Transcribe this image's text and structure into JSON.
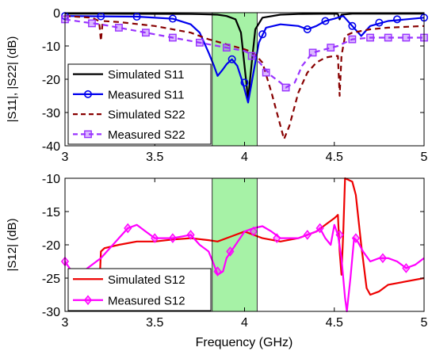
{
  "chart_data": [
    {
      "type": "line",
      "ylabel": "|S11|, |S22| (dB)",
      "xlim": [
        3,
        5
      ],
      "ylim": [
        -40,
        0
      ],
      "xticks": [
        "3",
        "3.5",
        "4",
        "4.5",
        "5"
      ],
      "yticks": [
        "0",
        "-10",
        "-20",
        "-30",
        "-40"
      ],
      "grid": false,
      "legend_position": "bottom-left",
      "highlight_band": {
        "x": [
          3.82,
          4.07
        ],
        "color": "#a6f2a6"
      },
      "series": [
        {
          "name": "Simulated S11",
          "style": "solid",
          "color": "#000000",
          "marker": "none",
          "points": [
            [
              3.0,
              -0.3
            ],
            [
              3.2,
              -0.3
            ],
            [
              3.5,
              -0.35
            ],
            [
              3.7,
              -0.4
            ],
            [
              3.8,
              -0.5
            ],
            [
              3.85,
              -0.6
            ],
            [
              3.9,
              -1.0
            ],
            [
              3.95,
              -2.0
            ],
            [
              3.98,
              -6.0
            ],
            [
              4.0,
              -16.0
            ],
            [
              4.02,
              -26.0
            ],
            [
              4.04,
              -15.0
            ],
            [
              4.06,
              -5.0
            ],
            [
              4.1,
              -1.5
            ],
            [
              4.2,
              -0.6
            ],
            [
              4.3,
              -0.4
            ],
            [
              4.5,
              -0.3
            ],
            [
              4.52,
              -0.4
            ],
            [
              4.53,
              -2.0
            ],
            [
              4.54,
              -0.6
            ],
            [
              4.6,
              -0.3
            ],
            [
              4.8,
              -0.3
            ],
            [
              5.0,
              -0.3
            ]
          ]
        },
        {
          "name": "Measured S11",
          "style": "solid",
          "color": "#0000ee",
          "marker": "circle",
          "points": [
            [
              3.0,
              -1.0
            ],
            [
              3.2,
              -1.1
            ],
            [
              3.4,
              -1.2
            ],
            [
              3.6,
              -1.8
            ],
            [
              3.7,
              -3.5
            ],
            [
              3.75,
              -6.0
            ],
            [
              3.8,
              -12.0
            ],
            [
              3.83,
              -16.0
            ],
            [
              3.85,
              -19.0
            ],
            [
              3.88,
              -17.0
            ],
            [
              3.9,
              -15.5
            ],
            [
              3.93,
              -14.0
            ],
            [
              3.96,
              -16.0
            ],
            [
              3.99,
              -21.0
            ],
            [
              4.02,
              -27.0
            ],
            [
              4.05,
              -18.0
            ],
            [
              4.08,
              -9.0
            ],
            [
              4.12,
              -4.5
            ],
            [
              4.2,
              -3.5
            ],
            [
              4.3,
              -4.0
            ],
            [
              4.35,
              -5.0
            ],
            [
              4.4,
              -4.0
            ],
            [
              4.45,
              -2.5
            ],
            [
              4.5,
              -1.8
            ],
            [
              4.55,
              -1.0
            ],
            [
              4.6,
              -4.0
            ],
            [
              4.65,
              -7.0
            ],
            [
              4.7,
              -4.0
            ],
            [
              4.8,
              -2.5
            ],
            [
              5.0,
              -1.5
            ]
          ],
          "marker_points": [
            [
              3.0,
              -1.0
            ],
            [
              3.2,
              -1.1
            ],
            [
              3.4,
              -1.2
            ],
            [
              3.6,
              -1.8
            ],
            [
              3.93,
              -14.0
            ],
            [
              4.0,
              -21.0
            ],
            [
              4.1,
              -6.5
            ],
            [
              4.35,
              -5.0
            ],
            [
              4.45,
              -2.5
            ],
            [
              4.6,
              -4.0
            ],
            [
              4.75,
              -3.0
            ],
            [
              4.85,
              -2.0
            ],
            [
              5.0,
              -1.5
            ]
          ]
        },
        {
          "name": "Simulated S22",
          "style": "dashed",
          "color": "#880000",
          "marker": "none",
          "points": [
            [
              3.0,
              -1.0
            ],
            [
              3.15,
              -1.5
            ],
            [
              3.19,
              -2.5
            ],
            [
              3.2,
              -8.5
            ],
            [
              3.21,
              -2.5
            ],
            [
              3.3,
              -2.8
            ],
            [
              3.5,
              -4.0
            ],
            [
              3.7,
              -6.0
            ],
            [
              3.8,
              -8.0
            ],
            [
              3.9,
              -9.5
            ],
            [
              4.0,
              -11.0
            ],
            [
              4.05,
              -12.0
            ],
            [
              4.1,
              -15.0
            ],
            [
              4.15,
              -24.0
            ],
            [
              4.2,
              -34.0
            ],
            [
              4.22,
              -38.0
            ],
            [
              4.25,
              -34.0
            ],
            [
              4.3,
              -24.0
            ],
            [
              4.35,
              -18.0
            ],
            [
              4.4,
              -15.0
            ],
            [
              4.45,
              -13.5
            ],
            [
              4.5,
              -13.0
            ],
            [
              4.52,
              -13.0
            ],
            [
              4.53,
              -25.0
            ],
            [
              4.54,
              -13.0
            ],
            [
              4.56,
              -7.0
            ],
            [
              4.6,
              -6.0
            ],
            [
              4.7,
              -5.0
            ],
            [
              4.8,
              -4.5
            ],
            [
              5.0,
              -4.0
            ]
          ]
        },
        {
          "name": "Measured S22",
          "style": "dashed",
          "color": "#9933ff",
          "marker": "square",
          "points": [
            [
              3.0,
              -2.0
            ],
            [
              3.1,
              -2.8
            ],
            [
              3.2,
              -3.5
            ],
            [
              3.3,
              -4.5
            ],
            [
              3.4,
              -5.5
            ],
            [
              3.5,
              -6.5
            ],
            [
              3.6,
              -7.5
            ],
            [
              3.7,
              -8.5
            ],
            [
              3.8,
              -9.5
            ],
            [
              3.9,
              -10.5
            ],
            [
              4.0,
              -11.5
            ],
            [
              4.05,
              -13.0
            ],
            [
              4.1,
              -16.0
            ],
            [
              4.15,
              -19.0
            ],
            [
              4.2,
              -21.0
            ],
            [
              4.23,
              -22.5
            ],
            [
              4.28,
              -21.0
            ],
            [
              4.32,
              -16.0
            ],
            [
              4.38,
              -12.0
            ],
            [
              4.45,
              -11.0
            ],
            [
              4.52,
              -10.0
            ],
            [
              4.6,
              -8.0
            ],
            [
              4.7,
              -7.5
            ],
            [
              4.8,
              -7.5
            ],
            [
              4.9,
              -7.5
            ],
            [
              5.0,
              -7.5
            ]
          ],
          "marker_points": [
            [
              3.0,
              -2.0
            ],
            [
              3.15,
              -3.2
            ],
            [
              3.3,
              -4.5
            ],
            [
              3.45,
              -6.0
            ],
            [
              3.6,
              -7.5
            ],
            [
              3.75,
              -9.0
            ],
            [
              3.9,
              -10.5
            ],
            [
              4.04,
              -13.0
            ],
            [
              4.12,
              -18.0
            ],
            [
              4.23,
              -22.5
            ],
            [
              4.38,
              -12.0
            ],
            [
              4.48,
              -10.5
            ],
            [
              4.6,
              -8.0
            ],
            [
              4.7,
              -7.5
            ],
            [
              4.8,
              -7.5
            ],
            [
              4.9,
              -7.5
            ],
            [
              5.0,
              -7.5
            ]
          ]
        }
      ]
    },
    {
      "type": "line",
      "xlabel": "Frequency (GHz)",
      "ylabel": "|S12| (dB)",
      "xlim": [
        3,
        5
      ],
      "ylim": [
        -30,
        -10
      ],
      "xticks": [
        "3",
        "3.5",
        "4",
        "4.5",
        "5"
      ],
      "yticks": [
        "-10",
        "-15",
        "-20",
        "-25",
        "-30"
      ],
      "grid": false,
      "legend_position": "bottom-left",
      "highlight_band": {
        "x": [
          3.82,
          4.07
        ],
        "color": "#a6f2a6"
      },
      "series": [
        {
          "name": "Simulated S12",
          "style": "solid",
          "color": "#ee0000",
          "marker": "none",
          "points": [
            [
              3.19,
              -27.5
            ],
            [
              3.2,
              -21.0
            ],
            [
              3.22,
              -20.5
            ],
            [
              3.3,
              -20.0
            ],
            [
              3.4,
              -19.5
            ],
            [
              3.5,
              -19.5
            ],
            [
              3.6,
              -19.2
            ],
            [
              3.7,
              -19.0
            ],
            [
              3.8,
              -19.3
            ],
            [
              3.85,
              -19.5
            ],
            [
              3.9,
              -19.0
            ],
            [
              3.95,
              -18.5
            ],
            [
              4.0,
              -18.0
            ],
            [
              4.05,
              -18.5
            ],
            [
              4.1,
              -19.0
            ],
            [
              4.2,
              -19.5
            ],
            [
              4.3,
              -19.0
            ],
            [
              4.4,
              -18.0
            ],
            [
              4.45,
              -17.0
            ],
            [
              4.5,
              -16.0
            ],
            [
              4.52,
              -15.5
            ],
            [
              4.53,
              -21.0
            ],
            [
              4.54,
              -24.5
            ],
            [
              4.55,
              -18.0
            ],
            [
              4.56,
              -10.0
            ],
            [
              4.6,
              -10.5
            ],
            [
              4.62,
              -12.5
            ],
            [
              4.65,
              -20.0
            ],
            [
              4.68,
              -26.5
            ],
            [
              4.7,
              -27.5
            ],
            [
              4.75,
              -27.0
            ],
            [
              4.8,
              -26.0
            ],
            [
              4.9,
              -25.5
            ],
            [
              5.0,
              -25.0
            ]
          ]
        },
        {
          "name": "Measured S12",
          "style": "solid",
          "color": "#ff00ff",
          "marker": "diamond",
          "points": [
            [
              3.0,
              -22.5
            ],
            [
              3.05,
              -24.5
            ],
            [
              3.08,
              -26.5
            ],
            [
              3.1,
              -24.0
            ],
            [
              3.15,
              -23.0
            ],
            [
              3.2,
              -22.0
            ],
            [
              3.3,
              -19.0
            ],
            [
              3.35,
              -17.5
            ],
            [
              3.4,
              -17.0
            ],
            [
              3.45,
              -18.0
            ],
            [
              3.5,
              -19.0
            ],
            [
              3.6,
              -19.0
            ],
            [
              3.7,
              -18.5
            ],
            [
              3.75,
              -20.0
            ],
            [
              3.8,
              -21.0
            ],
            [
              3.83,
              -23.0
            ],
            [
              3.85,
              -24.5
            ],
            [
              3.88,
              -24.0
            ],
            [
              3.9,
              -22.0
            ],
            [
              3.95,
              -20.0
            ],
            [
              4.0,
              -18.0
            ],
            [
              4.05,
              -17.5
            ],
            [
              4.1,
              -17.2
            ],
            [
              4.15,
              -18.0
            ],
            [
              4.2,
              -19.0
            ],
            [
              4.25,
              -19.0
            ],
            [
              4.3,
              -19.0
            ],
            [
              4.35,
              -18.5
            ],
            [
              4.4,
              -18.0
            ],
            [
              4.42,
              -17.5
            ],
            [
              4.45,
              -19.0
            ],
            [
              4.48,
              -20.0
            ],
            [
              4.5,
              -17.0
            ],
            [
              4.52,
              -18.5
            ],
            [
              4.54,
              -22.0
            ],
            [
              4.56,
              -28.0
            ],
            [
              4.57,
              -30.0
            ],
            [
              4.59,
              -25.0
            ],
            [
              4.61,
              -19.0
            ],
            [
              4.63,
              -19.5
            ],
            [
              4.66,
              -21.0
            ],
            [
              4.7,
              -22.5
            ],
            [
              4.75,
              -22.0
            ],
            [
              4.8,
              -22.0
            ],
            [
              4.85,
              -22.5
            ],
            [
              4.9,
              -23.5
            ],
            [
              4.95,
              -23.0
            ],
            [
              5.0,
              -22.0
            ]
          ],
          "marker_points": [
            [
              3.0,
              -22.5
            ],
            [
              3.35,
              -17.5
            ],
            [
              3.5,
              -19.0
            ],
            [
              3.6,
              -19.0
            ],
            [
              3.7,
              -18.5
            ],
            [
              3.85,
              -24.0
            ],
            [
              3.92,
              -21.0
            ],
            [
              4.05,
              -18.0
            ],
            [
              4.18,
              -19.0
            ],
            [
              4.35,
              -18.5
            ],
            [
              4.42,
              -17.5
            ],
            [
              4.53,
              -18.5
            ],
            [
              4.62,
              -19.0
            ],
            [
              4.77,
              -22.0
            ],
            [
              4.9,
              -23.5
            ]
          ]
        }
      ]
    }
  ]
}
